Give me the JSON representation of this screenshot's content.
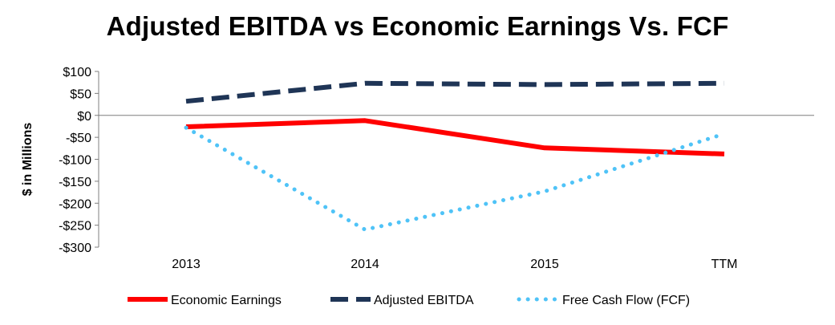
{
  "chart_data": {
    "type": "line",
    "title": "Adjusted EBITDA vs Economic Earnings Vs. FCF",
    "xlabel": "",
    "ylabel": "$ in Millions",
    "categories": [
      "2013",
      "2014",
      "2015",
      "TTM"
    ],
    "ylim": [
      -300,
      100
    ],
    "yticks": [
      100,
      50,
      0,
      -50,
      -100,
      -150,
      -200,
      -250,
      -300
    ],
    "ytick_labels": [
      "$100",
      "$50",
      "$0",
      "-$50",
      "-$100",
      "-$150",
      "-$200",
      "-$250",
      "-$300"
    ],
    "grid": false,
    "legend_position": "bottom",
    "series": [
      {
        "name": "Economic Earnings",
        "values": [
          -26,
          -12,
          -74,
          -88
        ],
        "color": "#ff0000",
        "style": "solid"
      },
      {
        "name": "Adjusted EBITDA",
        "values": [
          32,
          73,
          70,
          73
        ],
        "color": "#1f3556",
        "style": "dashed"
      },
      {
        "name": "Free Cash Flow (FCF)",
        "values": [
          -28,
          -260,
          -173,
          -42
        ],
        "color": "#4fc3f7",
        "style": "dotted"
      }
    ]
  }
}
